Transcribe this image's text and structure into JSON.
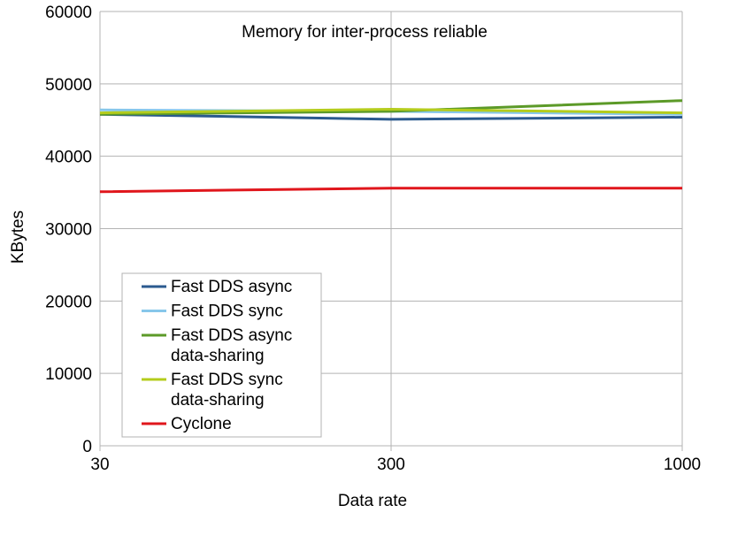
{
  "chart_data": {
    "type": "line",
    "title": "Memory for inter-process reliable",
    "xlabel": "Data rate",
    "ylabel": "KBytes",
    "categories": [
      "30",
      "300",
      "1000"
    ],
    "ylim": [
      0,
      60000
    ],
    "yticks": [
      0,
      10000,
      20000,
      30000,
      40000,
      50000,
      60000
    ],
    "grid": true,
    "legend_position": "bottom-left",
    "series": [
      {
        "name": "Fast DDS async",
        "legend_lines": [
          "Fast DDS async"
        ],
        "color": "#2b5a8f",
        "values": [
          45800,
          45100,
          45400
        ]
      },
      {
        "name": "Fast DDS sync",
        "legend_lines": [
          "Fast DDS sync"
        ],
        "color": "#87c7ea",
        "values": [
          46400,
          46200,
          45800
        ]
      },
      {
        "name": "Fast DDS async data-sharing",
        "legend_lines": [
          "Fast DDS async",
          "data-sharing"
        ],
        "color": "#5c9a28",
        "values": [
          45800,
          46200,
          47700
        ]
      },
      {
        "name": "Fast DDS sync data-sharing",
        "legend_lines": [
          "Fast DDS sync",
          "data-sharing"
        ],
        "color": "#b4cc1c",
        "values": [
          46000,
          46500,
          46000
        ]
      },
      {
        "name": "Cyclone",
        "legend_lines": [
          "Cyclone"
        ],
        "color": "#e0161c",
        "values": [
          35100,
          35600,
          35600
        ]
      }
    ]
  }
}
